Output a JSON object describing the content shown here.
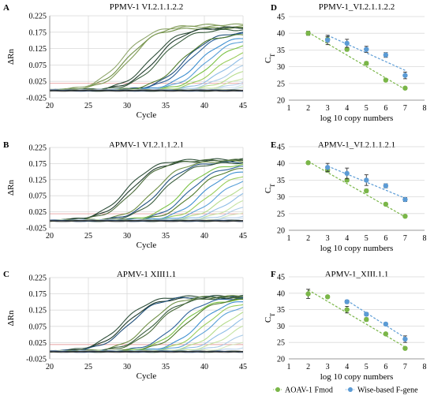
{
  "chart_data": [
    {
      "type": "line",
      "panel": "A",
      "title": "PPMV-1 VI.2.1.1.2.2",
      "xlabel": "Cycle",
      "ylabel": "ΔRn",
      "xlim": [
        20,
        45
      ],
      "ylim": [
        -0.025,
        0.225
      ],
      "x_ticks": [
        20,
        25,
        30,
        35,
        40,
        45
      ],
      "y_ticks": [
        "-0.025",
        "0.025",
        "0.075",
        "0.125",
        "0.175",
        "0.225"
      ],
      "threshold": 0.019,
      "grid": true,
      "curves": [
        {
          "ct": 25.9,
          "plateau": 0.195,
          "color": "#8fa66b"
        },
        {
          "ct": 26.5,
          "plateau": 0.19,
          "color": "#6f8f45"
        },
        {
          "ct": 27.1,
          "plateau": 0.2,
          "color": "#7f9a55"
        },
        {
          "ct": 29.6,
          "plateau": 0.19,
          "color": "#2f4f3a"
        },
        {
          "ct": 30.3,
          "plateau": 0.192,
          "color": "#1e3a2a"
        },
        {
          "ct": 30.7,
          "plateau": 0.185,
          "color": "#3a5e3e"
        },
        {
          "ct": 33.9,
          "plateau": 0.178,
          "color": "#1f4e79"
        },
        {
          "ct": 34.4,
          "plateau": 0.175,
          "color": "#2a6099"
        },
        {
          "ct": 33.3,
          "plateau": 0.17,
          "color": "#4f7a2a"
        },
        {
          "ct": 35.6,
          "plateau": 0.165,
          "color": "#3d8fd0"
        },
        {
          "ct": 36.5,
          "plateau": 0.16,
          "color": "#5aa0d8"
        },
        {
          "ct": 37.2,
          "plateau": 0.15,
          "color": "#7ac143"
        },
        {
          "ct": 38.0,
          "plateau": 0.13,
          "color": "#9acd5a"
        },
        {
          "ct": 38.9,
          "plateau": 0.12,
          "color": "#8fbde6"
        },
        {
          "ct": 39.6,
          "plateau": 0.1,
          "color": "#a9cbe8"
        },
        {
          "ct": 40.4,
          "plateau": 0.09,
          "color": "#b6dc8c"
        },
        {
          "ct": 41.2,
          "plateau": 0.07,
          "color": "#c5e3a3"
        },
        {
          "ct": 42.0,
          "plateau": 0.06,
          "color": "#b8d2ec"
        },
        {
          "ct": 42.6,
          "plateau": 0.05,
          "color": "#cfe0f0"
        },
        {
          "ct": 43.4,
          "plateau": 0.035,
          "color": "#d5e8bf"
        },
        {
          "ct": 44.0,
          "plateau": 0.025,
          "color": "#cde0ef"
        }
      ]
    },
    {
      "type": "scatter",
      "panel": "D",
      "title": "PPMV-1_VI.2.1.1.2.2",
      "xlabel": "log 10 copy numbers",
      "ylabel": "CT",
      "xlim": [
        1,
        8
      ],
      "ylim": [
        20,
        45
      ],
      "x_ticks": [
        1,
        2,
        3,
        4,
        5,
        6,
        7,
        8
      ],
      "y_ticks": [
        20,
        25,
        30,
        35,
        40,
        45
      ],
      "grid": true,
      "series": [
        {
          "name": "AOAV-1 Fmod",
          "color": "#7ab648",
          "x": [
            2,
            3,
            4,
            5,
            6,
            7
          ],
          "y": [
            40.0,
            38.2,
            35.2,
            31.0,
            26.0,
            23.6
          ],
          "err": [
            0.6,
            0.8,
            0.5,
            0.5,
            0.4,
            0.4
          ],
          "fit": [
            [
              2,
              40.3
            ],
            [
              7,
              23.2
            ]
          ]
        },
        {
          "name": "Wise-based F-gene",
          "color": "#5b9bd5",
          "x": [
            3,
            4,
            5,
            6,
            7
          ],
          "y": [
            38.0,
            37.0,
            35.2,
            33.5,
            27.4
          ],
          "err": [
            1.4,
            1.2,
            0.9,
            0.7,
            1.0
          ],
          "fit": [
            [
              3,
              39.4
            ],
            [
              7,
              28.9
            ]
          ]
        }
      ]
    },
    {
      "type": "line",
      "panel": "B",
      "title": "APMV-1 VI.2.1.1.2.1",
      "xlabel": "Cycle",
      "ylabel": "ΔRn",
      "xlim": [
        20,
        45
      ],
      "ylim": [
        -0.025,
        0.225
      ],
      "x_ticks": [
        20,
        25,
        30,
        35,
        40,
        45
      ],
      "y_ticks": [
        "-0.025",
        "0.025",
        "0.075",
        "0.125",
        "0.175",
        "0.225"
      ],
      "threshold": 0.019,
      "grid": true,
      "curves": [
        {
          "ct": 26.4,
          "plateau": 0.19,
          "color": "#2f4f3a"
        },
        {
          "ct": 26.9,
          "plateau": 0.185,
          "color": "#1e3a2a"
        },
        {
          "ct": 27.4,
          "plateau": 0.188,
          "color": "#4a6b3a"
        },
        {
          "ct": 30.0,
          "plateau": 0.185,
          "color": "#6f8f45"
        },
        {
          "ct": 30.6,
          "plateau": 0.182,
          "color": "#1f4e79"
        },
        {
          "ct": 31.1,
          "plateau": 0.18,
          "color": "#3a5e3e"
        },
        {
          "ct": 33.6,
          "plateau": 0.175,
          "color": "#7ac143"
        },
        {
          "ct": 34.3,
          "plateau": 0.17,
          "color": "#2a6099"
        },
        {
          "ct": 35.0,
          "plateau": 0.165,
          "color": "#4f7a2a"
        },
        {
          "ct": 36.1,
          "plateau": 0.16,
          "color": "#3d8fd0"
        },
        {
          "ct": 37.0,
          "plateau": 0.15,
          "color": "#9acd5a"
        },
        {
          "ct": 37.9,
          "plateau": 0.14,
          "color": "#5aa0d8"
        },
        {
          "ct": 38.8,
          "plateau": 0.125,
          "color": "#b6dc8c"
        },
        {
          "ct": 39.6,
          "plateau": 0.11,
          "color": "#8fbde6"
        },
        {
          "ct": 40.5,
          "plateau": 0.095,
          "color": "#c5e3a3"
        },
        {
          "ct": 41.3,
          "plateau": 0.08,
          "color": "#a9cbe8"
        },
        {
          "ct": 42.2,
          "plateau": 0.065,
          "color": "#d5e8bf"
        },
        {
          "ct": 43.0,
          "plateau": 0.05,
          "color": "#b8d2ec"
        },
        {
          "ct": 43.8,
          "plateau": 0.035,
          "color": "#cfe0f0"
        }
      ]
    },
    {
      "type": "scatter",
      "panel": "E",
      "title": "APMV-1_VI.2.1.1.2.1",
      "xlabel": "log 10 copy numbers",
      "ylabel": "CT",
      "xlim": [
        1,
        8
      ],
      "ylim": [
        20,
        45
      ],
      "x_ticks": [
        1,
        2,
        3,
        4,
        5,
        6,
        7,
        8
      ],
      "y_ticks": [
        20,
        25,
        30,
        35,
        40,
        45
      ],
      "grid": true,
      "series": [
        {
          "name": "AOAV-1 Fmod",
          "color": "#7ab648",
          "x": [
            2,
            3,
            4,
            5,
            6,
            7
          ],
          "y": [
            40.2,
            38.0,
            35.0,
            31.8,
            27.8,
            24.2
          ],
          "err": [
            0.4,
            0.6,
            0.5,
            0.5,
            0.4,
            0.4
          ],
          "fit": [
            [
              2,
              40.6
            ],
            [
              7,
              24.0
            ]
          ]
        },
        {
          "name": "Wise-based F-gene",
          "color": "#5b9bd5",
          "x": [
            3,
            4,
            5,
            6,
            7
          ],
          "y": [
            38.8,
            37.0,
            35.0,
            33.3,
            29.2
          ],
          "err": [
            1.2,
            1.6,
            1.6,
            0.6,
            0.6
          ],
          "fit": [
            [
              3,
              39.2
            ],
            [
              7,
              29.6
            ]
          ]
        }
      ]
    },
    {
      "type": "line",
      "panel": "C",
      "title": "APMV-1 XIII1.1",
      "xlabel": "Cycle",
      "ylabel": "ΔRn",
      "xlim": [
        20,
        45
      ],
      "ylim": [
        -0.025,
        0.225
      ],
      "x_ticks": [
        20,
        25,
        30,
        35,
        40,
        45
      ],
      "y_ticks": [
        "-0.025",
        "0.025",
        "0.075",
        "0.125",
        "0.175",
        "0.225"
      ],
      "threshold": 0.019,
      "grid": true,
      "curves": [
        {
          "ct": 25.8,
          "plateau": 0.17,
          "color": "#2f4f3a"
        },
        {
          "ct": 26.3,
          "plateau": 0.165,
          "color": "#1e3a2a"
        },
        {
          "ct": 26.8,
          "plateau": 0.168,
          "color": "#1f4e79"
        },
        {
          "ct": 29.3,
          "plateau": 0.17,
          "color": "#6f8f45"
        },
        {
          "ct": 29.9,
          "plateau": 0.165,
          "color": "#3a5e3e"
        },
        {
          "ct": 30.4,
          "plateau": 0.168,
          "color": "#4a6b3a"
        },
        {
          "ct": 32.8,
          "plateau": 0.165,
          "color": "#2a6099"
        },
        {
          "ct": 33.4,
          "plateau": 0.16,
          "color": "#7ac143"
        },
        {
          "ct": 34.0,
          "plateau": 0.162,
          "color": "#4f7a2a"
        },
        {
          "ct": 35.6,
          "plateau": 0.16,
          "color": "#3d8fd0"
        },
        {
          "ct": 36.4,
          "plateau": 0.155,
          "color": "#9acd5a"
        },
        {
          "ct": 37.2,
          "plateau": 0.15,
          "color": "#5aa0d8"
        },
        {
          "ct": 38.3,
          "plateau": 0.14,
          "color": "#b6dc8c"
        },
        {
          "ct": 39.1,
          "plateau": 0.125,
          "color": "#8fbde6"
        },
        {
          "ct": 40.0,
          "plateau": 0.11,
          "color": "#c5e3a3"
        },
        {
          "ct": 41.0,
          "plateau": 0.09,
          "color": "#a9cbe8"
        },
        {
          "ct": 42.0,
          "plateau": 0.07,
          "color": "#d5e8bf"
        },
        {
          "ct": 43.2,
          "plateau": 0.045,
          "color": "#b8d2ec"
        }
      ]
    },
    {
      "type": "scatter",
      "panel": "F",
      "title": "APMV-1_XIII.1.1",
      "xlabel": "log 10 copy numbers",
      "ylabel": "CT",
      "xlim": [
        1,
        8
      ],
      "ylim": [
        20,
        45
      ],
      "x_ticks": [
        1,
        2,
        3,
        4,
        5,
        6,
        7,
        8
      ],
      "y_ticks": [
        20,
        25,
        30,
        35,
        40,
        45
      ],
      "grid": true,
      "series": [
        {
          "name": "AOAV-1 Fmod",
          "color": "#7ab648",
          "x": [
            2,
            3,
            4,
            5,
            6,
            7
          ],
          "y": [
            39.8,
            38.9,
            35.0,
            32.0,
            27.6,
            23.2
          ],
          "err": [
            1.4,
            0.4,
            1.0,
            0.5,
            0.4,
            0.4
          ],
          "fit": [
            [
              2,
              41.0
            ],
            [
              7,
              23.6
            ]
          ]
        },
        {
          "name": "Wise-based F-gene",
          "color": "#5b9bd5",
          "x": [
            4,
            5,
            6,
            7
          ],
          "y": [
            37.4,
            33.6,
            30.6,
            26.0
          ],
          "err": [
            0.5,
            0.5,
            0.4,
            1.0
          ],
          "fit": [
            [
              4,
              37.8
            ],
            [
              7,
              26.4
            ]
          ]
        }
      ]
    }
  ],
  "legend": {
    "items": [
      {
        "label": "AOAV-1 Fmod",
        "color": "#7ab648"
      },
      {
        "label": "Wise-based F-gene",
        "color": "#5b9bd5"
      }
    ]
  }
}
